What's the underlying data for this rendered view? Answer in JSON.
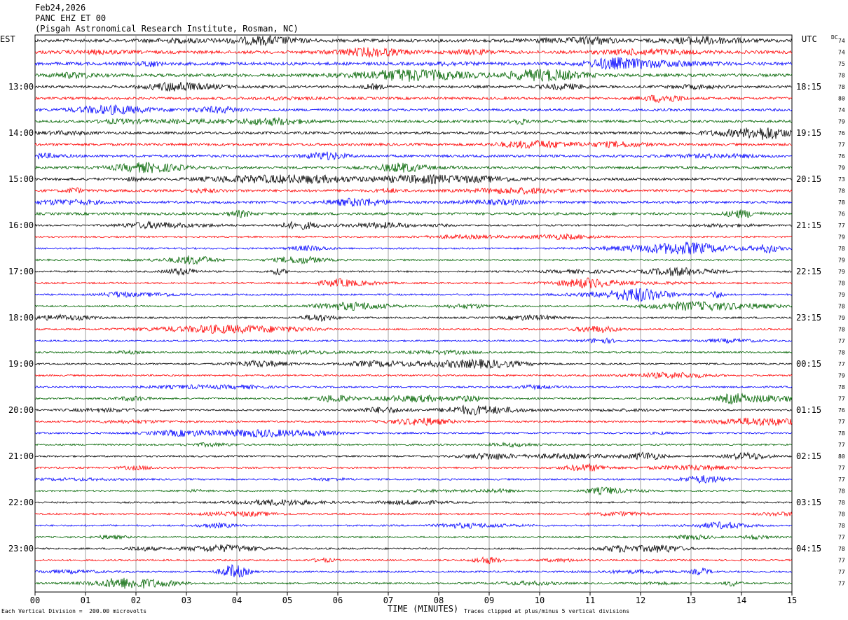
{
  "header": {
    "date": "Feb24,2026",
    "station": "PANC EHZ ET 00",
    "location": "(Pisgah Astronomical Research Institute, Rosman, NC)"
  },
  "left_axis_label": "EST",
  "right_axis_label": "UTC",
  "dc_label": "DC",
  "footer": {
    "xlabel": "TIME (MINUTES)",
    "scale_note": "Each Vertical Division =  200.00 microvolts",
    "clip_note": "Traces clipped at plus/minus 5 vertical divisions"
  },
  "chart_data": {
    "type": "line",
    "title": "PANC EHZ ET 00",
    "xlabel": "TIME (MINUTES)",
    "xlim": [
      0,
      15
    ],
    "x_ticks": [
      "00",
      "01",
      "02",
      "03",
      "04",
      "05",
      "06",
      "07",
      "08",
      "09",
      "10",
      "11",
      "12",
      "13",
      "14",
      "15"
    ],
    "trace_colors": [
      "#000000",
      "#ff0000",
      "#0000ff",
      "#006400"
    ],
    "rows": 48,
    "left_time_labels": [
      "13:00",
      "14:00",
      "15:00",
      "16:00",
      "17:00",
      "18:00",
      "19:00",
      "20:00",
      "21:00",
      "22:00",
      "23:00"
    ],
    "right_time_labels": [
      "18:15",
      "19:15",
      "20:15",
      "21:15",
      "22:15",
      "23:15",
      "00:15",
      "01:15",
      "02:15",
      "03:15",
      "04:15"
    ],
    "dc_offsets": [
      74,
      74,
      75,
      78,
      78,
      80,
      74,
      79,
      76,
      77,
      76,
      79,
      73,
      78,
      78,
      76,
      77,
      79,
      78,
      79,
      79,
      78,
      79,
      78,
      79,
      78,
      77,
      78,
      77,
      79,
      78,
      77,
      76,
      77,
      78,
      77,
      80,
      77,
      77,
      78,
      78,
      78,
      78,
      77,
      78,
      77,
      77,
      77
    ]
  }
}
